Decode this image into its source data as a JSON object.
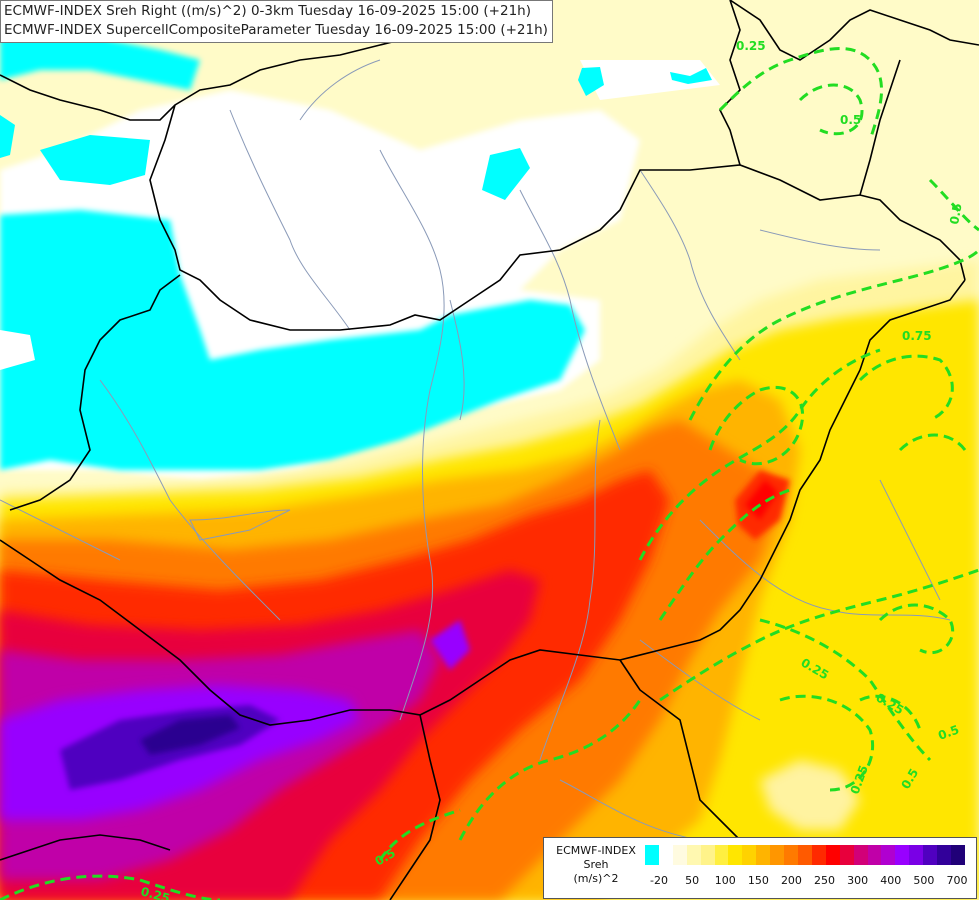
{
  "titles": {
    "line1": "ECMWF-INDEX Sreh Right ((m/s)^2) 0-3km Tuesday 16-09-2025 15:00 (+21h)",
    "line2": "ECMWF-INDEX SupercellCompositeParameter Tuesday 16-09-2025 15:00 (+21h)"
  },
  "legend": {
    "title_line1": "ECMWF-INDEX",
    "title_line2": "Sreh",
    "title_line3": "(m/s)^2",
    "colors": [
      "#00ffff",
      "#ffffff",
      "#fffbe0",
      "#fff8b0",
      "#fff38a",
      "#ffef40",
      "#ffe600",
      "#ffd200",
      "#ffb400",
      "#ff9600",
      "#ff7a00",
      "#ff5a00",
      "#ff2a00",
      "#ff0000",
      "#e8003c",
      "#d20078",
      "#c000a8",
      "#b000d0",
      "#9800ff",
      "#7a00e6",
      "#5000c0",
      "#32009a",
      "#200078"
    ],
    "tick_labels": [
      "-20",
      "50",
      "100",
      "150",
      "200",
      "250",
      "300",
      "400",
      "500",
      "700"
    ]
  },
  "contour_labels": [
    "0.25",
    "0.5",
    "0.75",
    "0.5",
    "0.5",
    "0.25",
    "0.25",
    "0.5",
    "0.25",
    "0.25",
    "0.5"
  ],
  "colors": {
    "contour": "#22dd22",
    "border": "#000000",
    "river": "#8a9ab8"
  }
}
